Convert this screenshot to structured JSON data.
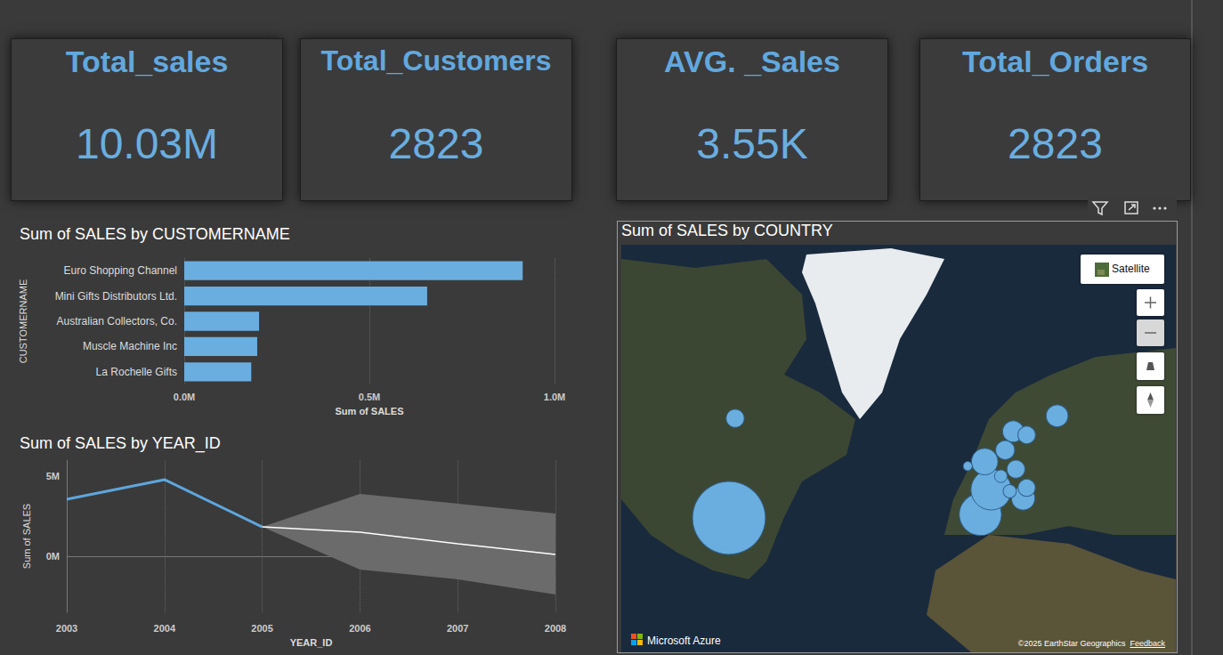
{
  "cards": [
    {
      "title": "Total_sales",
      "value": "10.03M"
    },
    {
      "title": "Total_Customers",
      "value": "2823"
    },
    {
      "title": "AVG. _Sales",
      "value": "3.55K"
    },
    {
      "title": "Total_Orders",
      "value": "2823"
    }
  ],
  "chart_data": [
    {
      "type": "bar",
      "orientation": "horizontal",
      "title": "Sum of SALES by CUSTOMERNAME",
      "categories": [
        "Euro Shopping Channel",
        "Mini Gifts Distributors Ltd.",
        "Australian Collectors, Co.",
        "Muscle Machine Inc",
        "La Rochelle Gifts"
      ],
      "values": [
        914000,
        656000,
        202000,
        197000,
        181000
      ],
      "color": "#6aaee0",
      "x_label": "Sum of SALES",
      "y_label": "CUSTOMERNAME",
      "xlim": [
        0,
        1000000
      ],
      "xticks": [
        {
          "value": 0,
          "label": "0.0M"
        },
        {
          "value": 500000,
          "label": "0.5M"
        },
        {
          "value": 1000000,
          "label": "1.0M"
        }
      ],
      "grid": true
    },
    {
      "type": "line",
      "title": "Sum of SALES by YEAR_ID",
      "x_label": "YEAR_ID",
      "y_label": "Sum of SALES",
      "x": [
        2003,
        2004,
        2005,
        2006,
        2007,
        2008
      ],
      "xlim": [
        2003,
        2008
      ],
      "xticks": [
        2003,
        2004,
        2005,
        2006,
        2007,
        2008
      ],
      "ylim": [
        -3500000,
        6000000
      ],
      "yticks": [
        {
          "value": 0,
          "label": "0M"
        },
        {
          "value": 5000000,
          "label": "5M"
        }
      ],
      "grid": true,
      "series": [
        {
          "type": "band",
          "color": "#6b6b6b",
          "upper": [
            null,
            null,
            1830000,
            3890000,
            3280000,
            2670000
          ],
          "lower": [
            null,
            null,
            1830000,
            -830000,
            -1440000,
            -2390000
          ]
        },
        {
          "type": "line",
          "color": "#5ea6dc",
          "values": [
            3560000,
            4780000,
            1830000,
            null,
            null,
            null
          ]
        },
        {
          "type": "line",
          "color": "#ffffff",
          "values": [
            null,
            null,
            1830000,
            1500000,
            780000,
            110000
          ]
        }
      ]
    },
    {
      "type": "scatter",
      "title": "Sum of SALES by COUNTRY",
      "color": "#6aaee0",
      "x": [
        -97.0,
        -3.6,
        0.4,
        -2.0,
        12.3,
        24.9,
        8.6,
        5.6,
        -94.7,
        9.6,
        13.6,
        13.6,
        7.3,
        4.0,
        -8.3
      ],
      "values": [
        39.7,
        40.4,
        45.3,
        50.9,
        43.6,
        60.0,
        56.9,
        53.2,
        59.5,
        49.4,
        56.2,
        45.7,
        45.0,
        48.0,
        50.0
      ],
      "size": [
        3627983,
        1215686,
        1110916,
        478880,
        374674,
        329581,
        307463,
        245637,
        224078,
        220472,
        210014,
        202062,
        117714,
        108412,
        57756
      ],
      "xlim": [
        -137,
        69
      ],
      "ylim": [
        13,
        94
      ],
      "tick_labels": false
    }
  ],
  "map_overlay": {
    "button": "Satellite",
    "brand": "Microsoft Azure",
    "attribution": "©2025 EarthStar Geographics",
    "feedback": "Feedback"
  }
}
